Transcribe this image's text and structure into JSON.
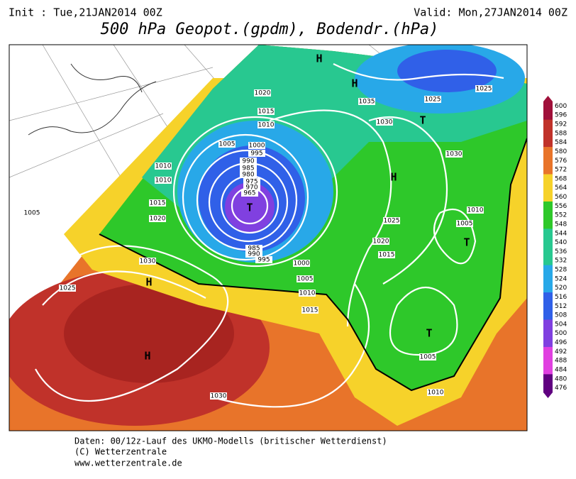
{
  "header": {
    "init": "Init : Tue,21JAN2014 00Z",
    "valid": "Valid: Mon,27JAN2014 00Z",
    "title": "500 hPa Geopot.(gpdm), Bodendr.(hPa)"
  },
  "colorbar": {
    "labels": [
      600,
      596,
      592,
      588,
      584,
      580,
      576,
      572,
      568,
      564,
      560,
      556,
      552,
      548,
      544,
      540,
      536,
      532,
      528,
      524,
      520,
      516,
      512,
      508,
      504,
      500,
      496,
      492,
      488,
      484,
      480,
      476
    ]
  },
  "map_labels": [
    "H",
    "H",
    "1020",
    "1035",
    "1025",
    "1025",
    "T",
    "1015",
    "1010",
    "1030",
    "1030",
    "1005",
    "1000",
    "995",
    "990",
    "985",
    "980",
    "975",
    "970",
    "965",
    "T",
    "H",
    "1010",
    "1010",
    "1005",
    "1015",
    "1020",
    "1025",
    "1010",
    "1005",
    "T",
    "1020",
    "985",
    "990",
    "995",
    "1000",
    "1005",
    "1010",
    "1015",
    "1015",
    "1030",
    "H",
    "1025",
    "H",
    "1030",
    "T",
    "1005",
    "1010"
  ],
  "footer": {
    "line1": "Daten: 00/12z-Lauf des UKMO-Modells (britischer Wetterdienst)",
    "line2": "(C) Wetterzentrale",
    "line3": "www.wetterzentrale.de"
  }
}
